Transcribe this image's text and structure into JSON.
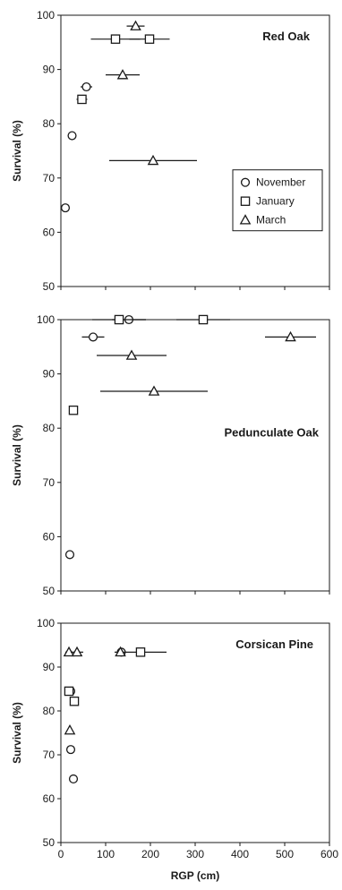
{
  "chart_data": [
    {
      "type": "scatter",
      "title": "Red Oak",
      "ylabel": "Survival (%)",
      "xlabel": "",
      "xlim": [
        0,
        600
      ],
      "ylim": [
        50,
        100
      ],
      "xticks": [
        "0",
        "100",
        "200",
        "300",
        "400",
        "500",
        "600"
      ],
      "yticks": [
        "50",
        "60",
        "70",
        "80",
        "90",
        "100"
      ],
      "show_xtick_labels": false,
      "legend": {
        "placement": "bottom-right",
        "entries": [
          "November",
          "January",
          "March"
        ]
      },
      "series": [
        {
          "name": "November",
          "marker": "circle",
          "points": [
            {
              "x": 10,
              "y": 64.5,
              "xerr": 0
            },
            {
              "x": 25,
              "y": 77.8,
              "xerr": 0
            },
            {
              "x": 57,
              "y": 86.8,
              "xerr": 13
            }
          ]
        },
        {
          "name": "January",
          "marker": "square",
          "points": [
            {
              "x": 47,
              "y": 84.5,
              "xerr": 12
            },
            {
              "x": 122,
              "y": 95.6,
              "xerr": 55
            },
            {
              "x": 198,
              "y": 95.6,
              "xerr": 45
            }
          ]
        },
        {
          "name": "March",
          "marker": "triangle",
          "points": [
            {
              "x": 167,
              "y": 98,
              "xerr": 20
            },
            {
              "x": 138,
              "y": 89,
              "xerr": 38
            },
            {
              "x": 206,
              "y": 73.2,
              "xerr": 98
            }
          ]
        }
      ]
    },
    {
      "type": "scatter",
      "title": "Pedunculate Oak",
      "ylabel": "Survival (%)",
      "xlabel": "",
      "xlim": [
        0,
        600
      ],
      "ylim": [
        50,
        100
      ],
      "xticks": [
        "0",
        "100",
        "200",
        "300",
        "400",
        "500",
        "600"
      ],
      "yticks": [
        "50",
        "60",
        "70",
        "80",
        "90",
        "100"
      ],
      "show_xtick_labels": false,
      "series": [
        {
          "name": "November",
          "marker": "circle",
          "points": [
            {
              "x": 20,
              "y": 56.7,
              "xerr": 0
            },
            {
              "x": 72,
              "y": 96.8,
              "xerr": 25
            },
            {
              "x": 152,
              "y": 100,
              "xerr": 38
            }
          ]
        },
        {
          "name": "January",
          "marker": "square",
          "points": [
            {
              "x": 28,
              "y": 83.3,
              "xerr": 0
            },
            {
              "x": 130,
              "y": 100,
              "xerr": 60
            },
            {
              "x": 318,
              "y": 100,
              "xerr": 60
            }
          ]
        },
        {
          "name": "March",
          "marker": "triangle",
          "points": [
            {
              "x": 158,
              "y": 93.4,
              "xerr": 78
            },
            {
              "x": 208,
              "y": 86.8,
              "xerr": 120
            },
            {
              "x": 513,
              "y": 96.8,
              "xerr": 57
            }
          ]
        }
      ]
    },
    {
      "type": "scatter",
      "title": "Corsican Pine",
      "ylabel": "Survival (%)",
      "xlabel": "RGP (cm)",
      "xlim": [
        0,
        600
      ],
      "ylim": [
        50,
        100
      ],
      "xticks": [
        "0",
        "100",
        "200",
        "300",
        "400",
        "500",
        "600"
      ],
      "yticks": [
        "50",
        "60",
        "70",
        "80",
        "90",
        "100"
      ],
      "show_xtick_labels": true,
      "series": [
        {
          "name": "November",
          "marker": "circle",
          "points": [
            {
              "x": 22,
              "y": 71.2,
              "xerr": 0
            },
            {
              "x": 28,
              "y": 64.5,
              "xerr": 10
            },
            {
              "x": 22,
              "y": 84.5,
              "xerr": 0
            },
            {
              "x": 135,
              "y": 93.4,
              "xerr": 0
            }
          ]
        },
        {
          "name": "January",
          "marker": "square",
          "points": [
            {
              "x": 18,
              "y": 84.5,
              "xerr": 0
            },
            {
              "x": 30,
              "y": 82.2,
              "xerr": 0
            },
            {
              "x": 178,
              "y": 93.4,
              "xerr": 58
            }
          ]
        },
        {
          "name": "March",
          "marker": "triangle",
          "points": [
            {
              "x": 20,
              "y": 75.6,
              "xerr": 0
            },
            {
              "x": 18,
              "y": 93.4,
              "xerr": 8
            },
            {
              "x": 36,
              "y": 93.4,
              "xerr": 14
            },
            {
              "x": 133,
              "y": 93.4,
              "xerr": 0
            }
          ]
        }
      ]
    }
  ]
}
